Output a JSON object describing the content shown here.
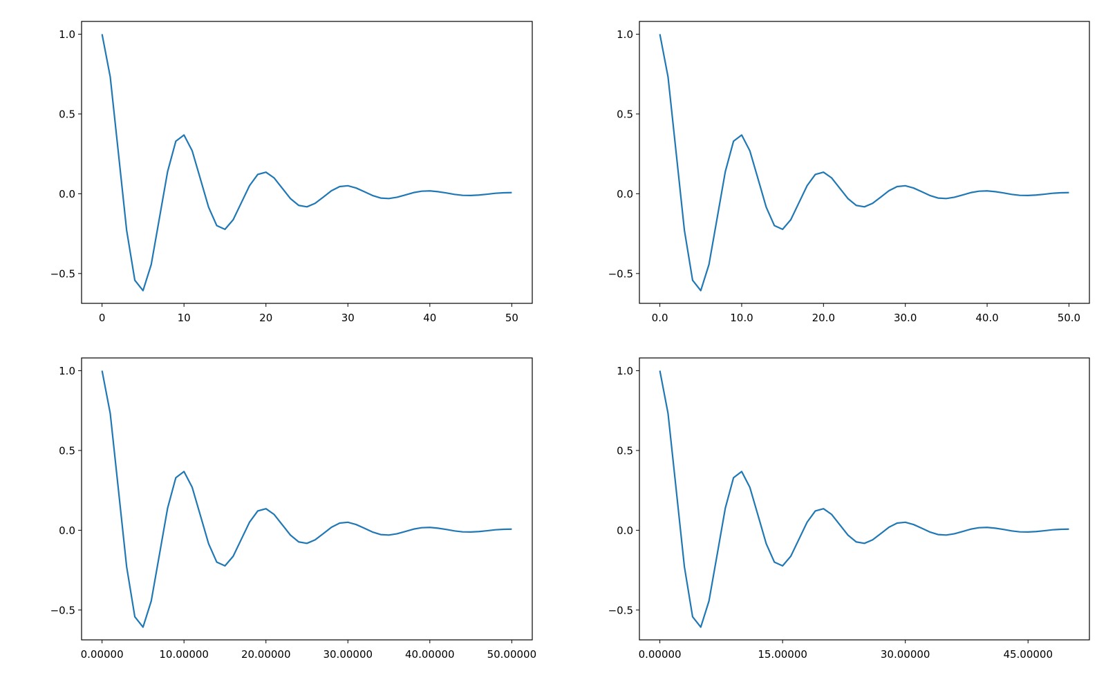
{
  "chart_data": [
    {
      "type": "line",
      "x": [
        0,
        1,
        2,
        3,
        4,
        5,
        6,
        7,
        8,
        9,
        10,
        11,
        12,
        13,
        14,
        15,
        16,
        17,
        18,
        19,
        20,
        21,
        22,
        23,
        24,
        25,
        26,
        27,
        28,
        29,
        30,
        31,
        32,
        33,
        34,
        35,
        36,
        37,
        38,
        39,
        40,
        41,
        42,
        43,
        44,
        45,
        46,
        47,
        48,
        49,
        50
      ],
      "series": [
        {
          "color": "#1f77b4",
          "values": [
            1,
            0.732,
            0.253,
            -0.229,
            -0.542,
            -0.607,
            -0.444,
            -0.153,
            0.139,
            0.329,
            0.368,
            0.269,
            0.093,
            -0.084,
            -0.2,
            -0.223,
            -0.163,
            -0.056,
            0.051,
            0.121,
            0.135,
            0.099,
            0.034,
            -0.031,
            -0.073,
            -0.082,
            -0.06,
            -0.021,
            0.019,
            0.045,
            0.05,
            0.036,
            0.013,
            -0.011,
            -0.027,
            -0.03,
            -0.022,
            -0.008,
            0.007,
            0.016,
            0.018,
            0.013,
            0.005,
            -0.004,
            -0.01,
            -0.011,
            -0.008,
            -0.003,
            0.003,
            0.006,
            0.007
          ]
        }
      ],
      "xlim": [
        -2.5,
        52.5
      ],
      "ylim": [
        -0.687,
        1.08
      ],
      "xticks": [
        0,
        10,
        20,
        30,
        40,
        50
      ],
      "yticks": [
        {
          "value": -0.5,
          "label": "−0.5"
        },
        {
          "value": 0,
          "label": "0.0"
        },
        0.5,
        {
          "value": 1,
          "label": "1.0"
        }
      ]
    },
    {
      "type": "line",
      "x": [
        0,
        1,
        2,
        3,
        4,
        5,
        6,
        7,
        8,
        9,
        10,
        11,
        12,
        13,
        14,
        15,
        16,
        17,
        18,
        19,
        20,
        21,
        22,
        23,
        24,
        25,
        26,
        27,
        28,
        29,
        30,
        31,
        32,
        33,
        34,
        35,
        36,
        37,
        38,
        39,
        40,
        41,
        42,
        43,
        44,
        45,
        46,
        47,
        48,
        49,
        50
      ],
      "series": [
        {
          "color": "#1f77b4",
          "values": [
            1,
            0.732,
            0.253,
            -0.229,
            -0.542,
            -0.607,
            -0.444,
            -0.153,
            0.139,
            0.329,
            0.368,
            0.269,
            0.093,
            -0.084,
            -0.2,
            -0.223,
            -0.163,
            -0.056,
            0.051,
            0.121,
            0.135,
            0.099,
            0.034,
            -0.031,
            -0.073,
            -0.082,
            -0.06,
            -0.021,
            0.019,
            0.045,
            0.05,
            0.036,
            0.013,
            -0.011,
            -0.027,
            -0.03,
            -0.022,
            -0.008,
            0.007,
            0.016,
            0.018,
            0.013,
            0.005,
            -0.004,
            -0.01,
            -0.011,
            -0.008,
            -0.003,
            0.003,
            0.006,
            0.007
          ]
        }
      ],
      "xlim": [
        -2.5,
        52.5
      ],
      "ylim": [
        -0.687,
        1.08
      ],
      "xticks": [
        {
          "value": 0,
          "label": "0.0"
        },
        {
          "value": 10,
          "label": "10.0"
        },
        {
          "value": 20,
          "label": "20.0"
        },
        {
          "value": 30,
          "label": "30.0"
        },
        {
          "value": 40,
          "label": "40.0"
        },
        {
          "value": 50,
          "label": "50.0"
        }
      ],
      "yticks": [
        {
          "value": -0.5,
          "label": "−0.5"
        },
        {
          "value": 0,
          "label": "0.0"
        },
        0.5,
        {
          "value": 1,
          "label": "1.0"
        }
      ]
    },
    {
      "type": "line",
      "x": [
        0,
        1,
        2,
        3,
        4,
        5,
        6,
        7,
        8,
        9,
        10,
        11,
        12,
        13,
        14,
        15,
        16,
        17,
        18,
        19,
        20,
        21,
        22,
        23,
        24,
        25,
        26,
        27,
        28,
        29,
        30,
        31,
        32,
        33,
        34,
        35,
        36,
        37,
        38,
        39,
        40,
        41,
        42,
        43,
        44,
        45,
        46,
        47,
        48,
        49,
        50
      ],
      "series": [
        {
          "color": "#1f77b4",
          "values": [
            1,
            0.732,
            0.253,
            -0.229,
            -0.542,
            -0.607,
            -0.444,
            -0.153,
            0.139,
            0.329,
            0.368,
            0.269,
            0.093,
            -0.084,
            -0.2,
            -0.223,
            -0.163,
            -0.056,
            0.051,
            0.121,
            0.135,
            0.099,
            0.034,
            -0.031,
            -0.073,
            -0.082,
            -0.06,
            -0.021,
            0.019,
            0.045,
            0.05,
            0.036,
            0.013,
            -0.011,
            -0.027,
            -0.03,
            -0.022,
            -0.008,
            0.007,
            0.016,
            0.018,
            0.013,
            0.005,
            -0.004,
            -0.01,
            -0.011,
            -0.008,
            -0.003,
            0.003,
            0.006,
            0.007
          ]
        }
      ],
      "xlim": [
        -2.5,
        52.5
      ],
      "ylim": [
        -0.687,
        1.08
      ],
      "xticks": [
        {
          "value": 0,
          "label": "0.00000"
        },
        {
          "value": 10,
          "label": "10.00000"
        },
        {
          "value": 20,
          "label": "20.00000"
        },
        {
          "value": 30,
          "label": "30.00000"
        },
        {
          "value": 40,
          "label": "40.00000"
        },
        {
          "value": 50,
          "label": "50.00000"
        }
      ],
      "yticks": [
        {
          "value": -0.5,
          "label": "−0.5"
        },
        {
          "value": 0,
          "label": "0.0"
        },
        0.5,
        {
          "value": 1,
          "label": "1.0"
        }
      ]
    },
    {
      "type": "line",
      "x": [
        0,
        1,
        2,
        3,
        4,
        5,
        6,
        7,
        8,
        9,
        10,
        11,
        12,
        13,
        14,
        15,
        16,
        17,
        18,
        19,
        20,
        21,
        22,
        23,
        24,
        25,
        26,
        27,
        28,
        29,
        30,
        31,
        32,
        33,
        34,
        35,
        36,
        37,
        38,
        39,
        40,
        41,
        42,
        43,
        44,
        45,
        46,
        47,
        48,
        49,
        50
      ],
      "series": [
        {
          "color": "#1f77b4",
          "values": [
            1,
            0.732,
            0.253,
            -0.229,
            -0.542,
            -0.607,
            -0.444,
            -0.153,
            0.139,
            0.329,
            0.368,
            0.269,
            0.093,
            -0.084,
            -0.2,
            -0.223,
            -0.163,
            -0.056,
            0.051,
            0.121,
            0.135,
            0.099,
            0.034,
            -0.031,
            -0.073,
            -0.082,
            -0.06,
            -0.021,
            0.019,
            0.045,
            0.05,
            0.036,
            0.013,
            -0.011,
            -0.027,
            -0.03,
            -0.022,
            -0.008,
            0.007,
            0.016,
            0.018,
            0.013,
            0.005,
            -0.004,
            -0.01,
            -0.011,
            -0.008,
            -0.003,
            0.003,
            0.006,
            0.007
          ]
        }
      ],
      "xlim": [
        -2.5,
        52.5
      ],
      "ylim": [
        -0.687,
        1.08
      ],
      "xticks": [
        {
          "value": 0,
          "label": "0.00000"
        },
        {
          "value": 15,
          "label": "15.00000"
        },
        {
          "value": 30,
          "label": "30.00000"
        },
        {
          "value": 45,
          "label": "45.00000"
        }
      ],
      "yticks": [
        {
          "value": -0.5,
          "label": "−0.5"
        },
        {
          "value": 0,
          "label": "0.0"
        },
        0.5,
        {
          "value": 1,
          "label": "1.0"
        }
      ]
    }
  ]
}
